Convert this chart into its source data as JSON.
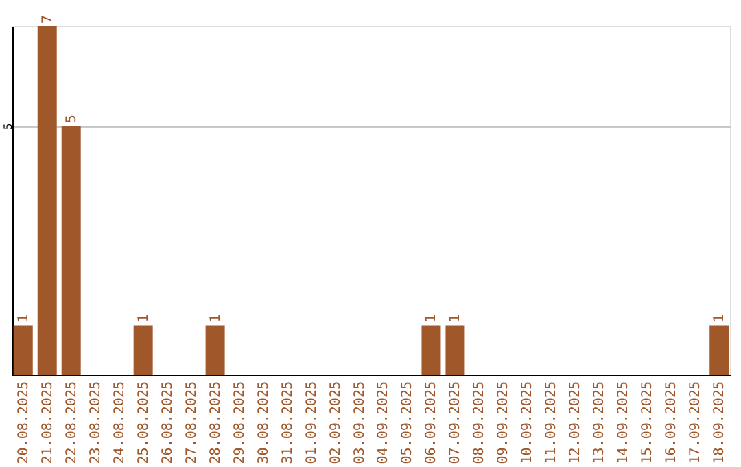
{
  "chart_data": {
    "type": "bar",
    "categories": [
      "20.08.2025",
      "21.08.2025",
      "22.08.2025",
      "23.08.2025",
      "24.08.2025",
      "25.08.2025",
      "26.08.2025",
      "27.08.2025",
      "28.08.2025",
      "29.08.2025",
      "30.08.2025",
      "31.08.2025",
      "01.09.2025",
      "02.09.2025",
      "03.09.2025",
      "04.09.2025",
      "05.09.2025",
      "06.09.2025",
      "07.09.2025",
      "08.09.2025",
      "09.09.2025",
      "10.09.2025",
      "11.09.2025",
      "12.09.2025",
      "13.09.2025",
      "14.09.2025",
      "15.09.2025",
      "16.09.2025",
      "17.09.2025",
      "18.09.2025"
    ],
    "values": [
      1,
      7,
      5,
      0,
      0,
      1,
      0,
      0,
      1,
      0,
      0,
      0,
      0,
      0,
      0,
      0,
      0,
      1,
      1,
      0,
      0,
      0,
      0,
      0,
      0,
      0,
      0,
      0,
      0,
      1
    ],
    "value_labels": [
      "1",
      "7",
      "5",
      null,
      null,
      "1",
      null,
      null,
      "1",
      null,
      null,
      null,
      null,
      null,
      null,
      null,
      null,
      "1",
      "1",
      null,
      null,
      null,
      null,
      null,
      null,
      null,
      null,
      null,
      null,
      "1"
    ],
    "color": "#a0572a",
    "ylim": [
      0,
      7
    ],
    "yticks": [
      5
    ],
    "grid": "y"
  }
}
